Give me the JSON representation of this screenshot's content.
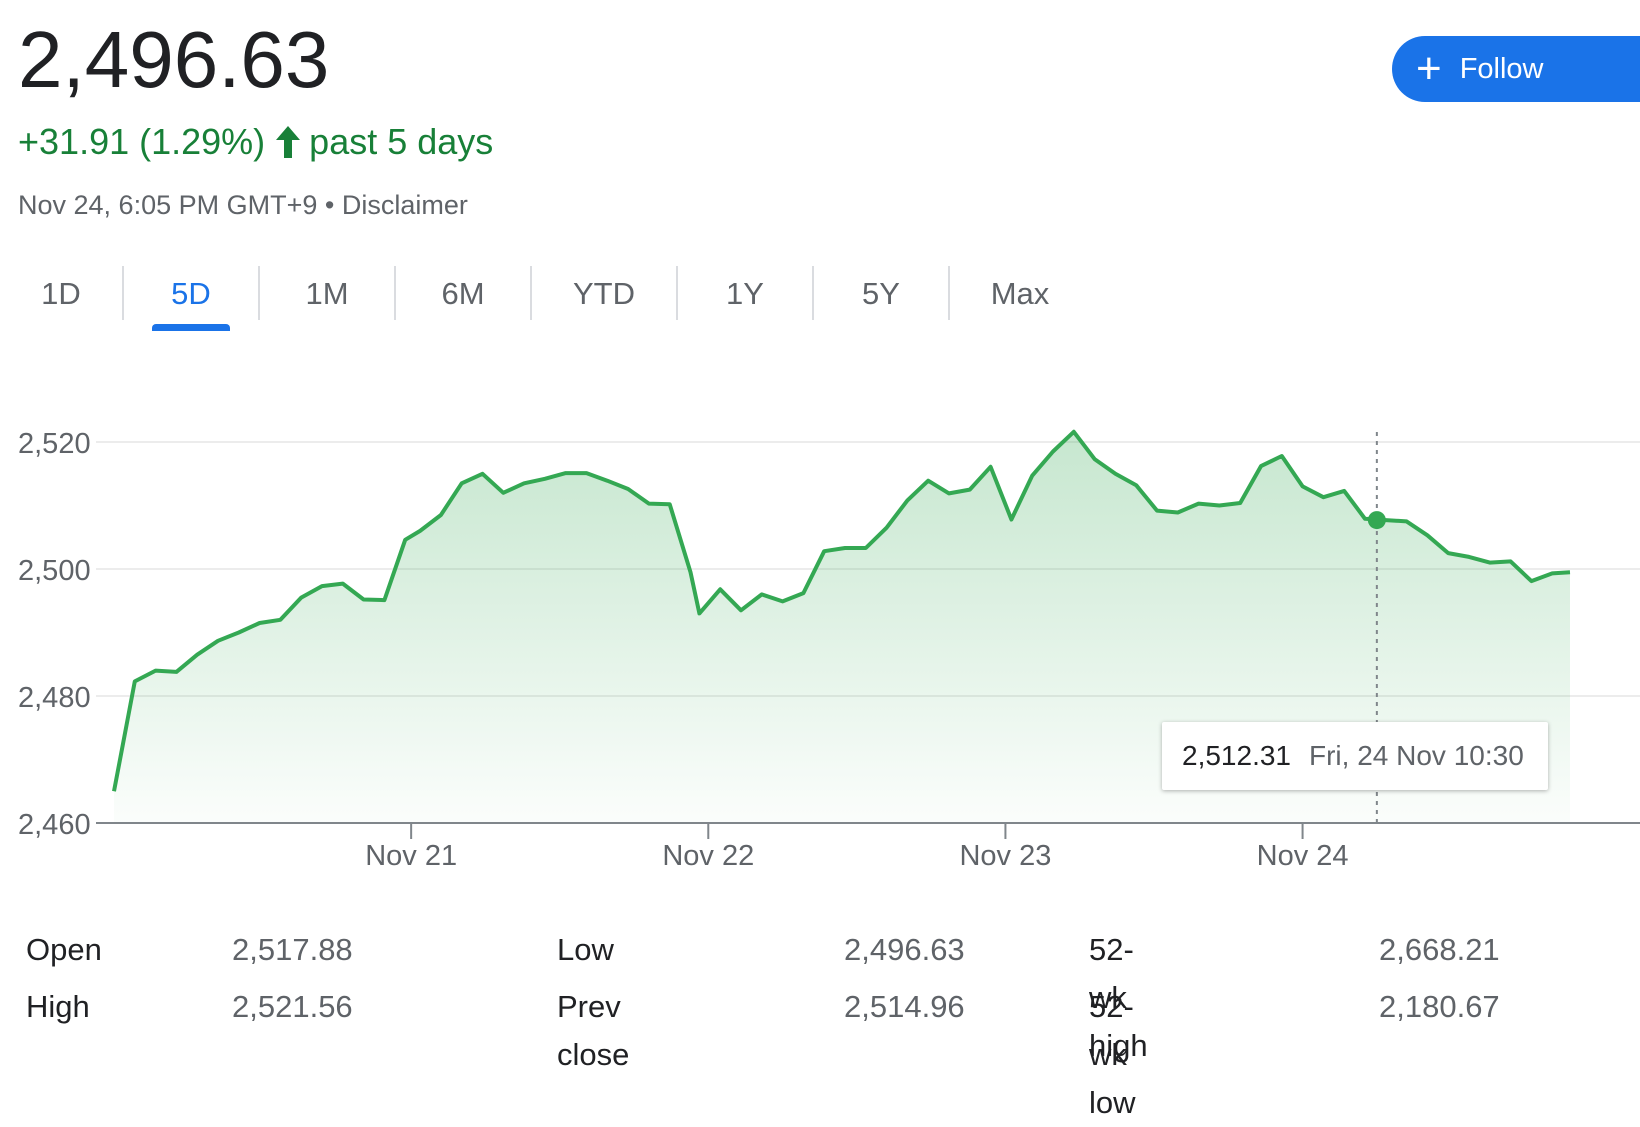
{
  "quote": {
    "price": "2,496.63",
    "change": "+31.91 (1.29%)",
    "period": "past 5 days",
    "timestamp": "Nov 24, 6:05 PM GMT+9",
    "separator": "•",
    "disclaimer": "Disclaimer",
    "up_color": "#188038"
  },
  "follow_button": {
    "label": "Follow",
    "icon": "plus-icon",
    "color": "#1a73e8"
  },
  "tabs": [
    {
      "label": "1D",
      "active": false
    },
    {
      "label": "5D",
      "active": true
    },
    {
      "label": "1M",
      "active": false
    },
    {
      "label": "6M",
      "active": false
    },
    {
      "label": "YTD",
      "active": false
    },
    {
      "label": "1Y",
      "active": false
    },
    {
      "label": "5Y",
      "active": false
    },
    {
      "label": "Max",
      "active": false
    }
  ],
  "chart_data": {
    "type": "area",
    "ylim": [
      2460,
      2520
    ],
    "y_ticks": [
      "2,520",
      "2,500",
      "2,480",
      "2,460"
    ],
    "y_tick_values": [
      2520,
      2500,
      2480,
      2460
    ],
    "x_labels": [
      "Nov 21",
      "Nov 22",
      "Nov 23",
      "Nov 24"
    ],
    "x_label_positions": [
      1,
      2,
      3,
      4
    ],
    "x_range": [
      0,
      4.9
    ],
    "line_color": "#34a853",
    "fill_color": "#e6f4ea",
    "grid": true,
    "series": [
      {
        "x": [
          0,
          0.07,
          0.14,
          0.21,
          0.28,
          0.35,
          0.42,
          0.49,
          0.56,
          0.63,
          0.7,
          0.77,
          0.84,
          0.91,
          0.98,
          1.03,
          1.1,
          1.17,
          1.24,
          1.31,
          1.38,
          1.45,
          1.52,
          1.59,
          1.66,
          1.73,
          1.8,
          1.87,
          1.94,
          1.97,
          2.04,
          2.11,
          2.18,
          2.25,
          2.32,
          2.39,
          2.46,
          2.53,
          2.6,
          2.67,
          2.74,
          2.81,
          2.88,
          2.95,
          3.02,
          3.09,
          3.16,
          3.23,
          3.3,
          3.37,
          3.44,
          3.51,
          3.58,
          3.65,
          3.72,
          3.79,
          3.86,
          3.93,
          4.0,
          4.07,
          4.14,
          4.21,
          4.28,
          4.35,
          4.42,
          4.49,
          4.56,
          4.63,
          4.7,
          4.77,
          4.84,
          4.9
        ],
        "y": [
          2465,
          2482.3,
          2484,
          2483.8,
          2486.5,
          2488.7,
          2490,
          2491.5,
          2492,
          2495.5,
          2497.3,
          2497.7,
          2495.2,
          2495.1,
          2504.6,
          2506,
          2508.5,
          2513.5,
          2515,
          2512,
          2513.5,
          2514.2,
          2515.1,
          2515.1,
          2513.9,
          2512.6,
          2510.3,
          2510.2,
          2499.5,
          2493,
          2496.8,
          2493.5,
          2496,
          2494.9,
          2496.2,
          2502.8,
          2503.3,
          2503.3,
          2506.5,
          2510.8,
          2513.9,
          2511.9,
          2512.5,
          2516.1,
          2507.8,
          2514.7,
          2518.5,
          2521.6,
          2517.3,
          2515,
          2513.2,
          2509.2,
          2508.9,
          2510.3,
          2510,
          2510.4,
          2516.2,
          2517.8,
          2513,
          2511.3,
          2512.3,
          2507.9,
          2507.7,
          2507.5,
          2505.3,
          2502.5,
          2501.9,
          2501,
          2501.2,
          2498.1,
          2499.3,
          2499.5
        ]
      }
    ],
    "crosshair_x": 4.25,
    "tooltip": {
      "value": "2,512.31",
      "date": "Fri, 24 Nov 10:30"
    }
  },
  "stats": [
    {
      "label": "Open",
      "value": "2,517.88"
    },
    {
      "label": "High",
      "value": "2,521.56"
    },
    {
      "label": "Low",
      "value": "2,496.63"
    },
    {
      "label": "Prev close",
      "value": "2,514.96"
    },
    {
      "label": "52-wk high",
      "value": "2,668.21"
    },
    {
      "label": "52-wk low",
      "value": "2,180.67"
    }
  ]
}
